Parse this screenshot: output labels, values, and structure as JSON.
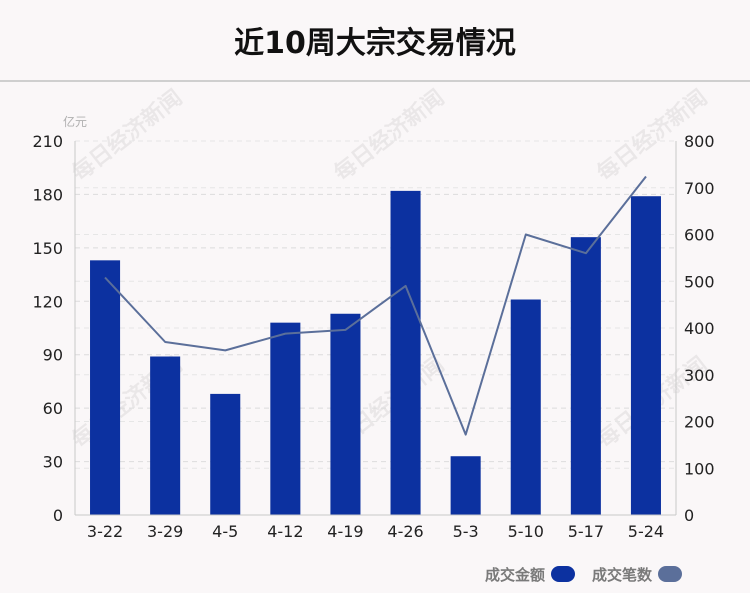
{
  "title": "近10周大宗交易情况",
  "watermark": "每日经济新闻",
  "legend": {
    "amount_label": "成交金额",
    "count_label": "成交笔数",
    "amount_color": "#0c31a0",
    "count_color": "#5b6f9a"
  },
  "chart_data": {
    "type": "bar",
    "categories": [
      "3-22",
      "3-29",
      "4-5",
      "4-12",
      "4-19",
      "4-26",
      "5-3",
      "5-10",
      "5-17",
      "5-24"
    ],
    "series": [
      {
        "name": "成交金额",
        "kind": "bar",
        "axis": "left",
        "values": [
          143,
          89,
          68,
          108,
          113,
          182,
          33,
          121,
          156,
          179
        ]
      },
      {
        "name": "成交笔数",
        "kind": "line",
        "axis": "right",
        "values": [
          508,
          370,
          352,
          388,
          396,
          490,
          172,
          600,
          560,
          724
        ]
      }
    ],
    "ylabel": "亿元",
    "ylim": [
      0,
      210
    ],
    "yticks": [
      0,
      30,
      60,
      90,
      120,
      150,
      180,
      210
    ],
    "y2lim": [
      0,
      800
    ],
    "y2ticks": [
      0,
      100,
      200,
      300,
      400,
      500,
      600,
      700,
      800
    ],
    "grid": true,
    "legend_position": "bottom-right"
  }
}
